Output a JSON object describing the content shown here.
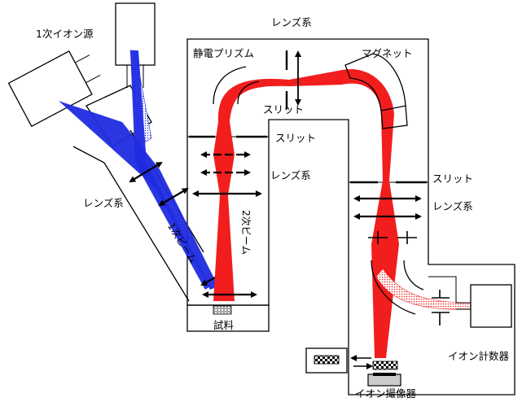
{
  "labels": {
    "primary_ion_source": "1次イオン源",
    "lens_system_right_top": "レンズ系",
    "electrostatic_prism": "静電プリズム",
    "magnet": "マグネット",
    "slit_center": "スリット",
    "slit_upper_right": "スリット",
    "lens_system_secondary": "レンズ系",
    "slit_lower_right": "スリット",
    "lens_system_lower_right": "レンズ系",
    "lens_system_left": "レンズ系",
    "primary_beam": "1次ビーム",
    "secondary_beam": "2次ビーム",
    "sample": "試料",
    "ion_counter": "イオン計数器",
    "ion_imager": "イオン撮像器"
  },
  "colors": {
    "primary_beam": "#1f2be0",
    "secondary_beam": "#f21d1d",
    "outline": "#000000"
  }
}
